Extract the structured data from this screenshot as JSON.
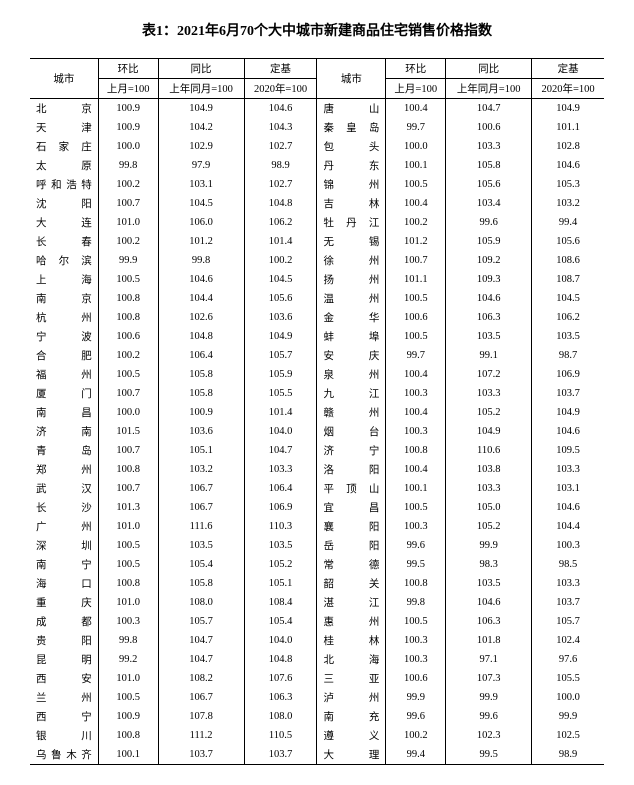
{
  "title": "表1：2021年6月70个大中城市新建商品住宅销售价格指数",
  "headers": {
    "city": "城市",
    "mom": "环比",
    "yoy": "同比",
    "base": "定基",
    "mom_sub": "上月=100",
    "yoy_sub": "上年同月=100",
    "base_sub": "2020年=100"
  },
  "left": [
    {
      "city": "北　　京",
      "mom": "100.9",
      "yoy": "104.9",
      "base": "104.6"
    },
    {
      "city": "天　　津",
      "mom": "100.9",
      "yoy": "104.2",
      "base": "104.3"
    },
    {
      "city": "石 家 庄",
      "mom": "100.0",
      "yoy": "102.9",
      "base": "102.7"
    },
    {
      "city": "太　　原",
      "mom": "99.8",
      "yoy": "97.9",
      "base": "98.9"
    },
    {
      "city": "呼和浩特",
      "mom": "100.2",
      "yoy": "103.1",
      "base": "102.7"
    },
    {
      "city": "沈　　阳",
      "mom": "100.7",
      "yoy": "104.5",
      "base": "104.8"
    },
    {
      "city": "大　　连",
      "mom": "101.0",
      "yoy": "106.0",
      "base": "106.2"
    },
    {
      "city": "长　　春",
      "mom": "100.2",
      "yoy": "101.2",
      "base": "101.4"
    },
    {
      "city": "哈 尔 滨",
      "mom": "99.9",
      "yoy": "99.8",
      "base": "100.2"
    },
    {
      "city": "上　　海",
      "mom": "100.5",
      "yoy": "104.6",
      "base": "104.5"
    },
    {
      "city": "南　　京",
      "mom": "100.8",
      "yoy": "104.4",
      "base": "105.6"
    },
    {
      "city": "杭　　州",
      "mom": "100.8",
      "yoy": "102.6",
      "base": "103.6"
    },
    {
      "city": "宁　　波",
      "mom": "100.6",
      "yoy": "104.8",
      "base": "104.9"
    },
    {
      "city": "合　　肥",
      "mom": "100.2",
      "yoy": "106.4",
      "base": "105.7"
    },
    {
      "city": "福　　州",
      "mom": "100.5",
      "yoy": "105.8",
      "base": "105.9"
    },
    {
      "city": "厦　　门",
      "mom": "100.7",
      "yoy": "105.8",
      "base": "105.5"
    },
    {
      "city": "南　　昌",
      "mom": "100.0",
      "yoy": "100.9",
      "base": "101.4"
    },
    {
      "city": "济　　南",
      "mom": "101.5",
      "yoy": "103.6",
      "base": "104.0"
    },
    {
      "city": "青　　岛",
      "mom": "100.7",
      "yoy": "105.1",
      "base": "104.7"
    },
    {
      "city": "郑　　州",
      "mom": "100.8",
      "yoy": "103.2",
      "base": "103.3"
    },
    {
      "city": "武　　汉",
      "mom": "100.7",
      "yoy": "106.7",
      "base": "106.4"
    },
    {
      "city": "长　　沙",
      "mom": "101.3",
      "yoy": "106.7",
      "base": "106.9"
    },
    {
      "city": "广　　州",
      "mom": "101.0",
      "yoy": "111.6",
      "base": "110.3"
    },
    {
      "city": "深　　圳",
      "mom": "100.5",
      "yoy": "103.5",
      "base": "103.5"
    },
    {
      "city": "南　　宁",
      "mom": "100.5",
      "yoy": "105.4",
      "base": "105.2"
    },
    {
      "city": "海　　口",
      "mom": "100.8",
      "yoy": "105.8",
      "base": "105.1"
    },
    {
      "city": "重　　庆",
      "mom": "101.0",
      "yoy": "108.0",
      "base": "108.4"
    },
    {
      "city": "成　　都",
      "mom": "100.3",
      "yoy": "105.7",
      "base": "105.4"
    },
    {
      "city": "贵　　阳",
      "mom": "99.8",
      "yoy": "104.7",
      "base": "104.0"
    },
    {
      "city": "昆　　明",
      "mom": "99.2",
      "yoy": "104.7",
      "base": "104.8"
    },
    {
      "city": "西　　安",
      "mom": "101.0",
      "yoy": "108.2",
      "base": "107.6"
    },
    {
      "city": "兰　　州",
      "mom": "100.5",
      "yoy": "106.7",
      "base": "106.3"
    },
    {
      "city": "西　　宁",
      "mom": "100.9",
      "yoy": "107.8",
      "base": "108.0"
    },
    {
      "city": "银　　川",
      "mom": "100.8",
      "yoy": "111.2",
      "base": "110.5"
    },
    {
      "city": "乌鲁木齐",
      "mom": "100.1",
      "yoy": "103.7",
      "base": "103.7"
    }
  ],
  "right": [
    {
      "city": "唐　　山",
      "mom": "100.4",
      "yoy": "104.7",
      "base": "104.9"
    },
    {
      "city": "秦 皇 岛",
      "mom": "99.7",
      "yoy": "100.6",
      "base": "101.1"
    },
    {
      "city": "包　　头",
      "mom": "100.0",
      "yoy": "103.3",
      "base": "102.8"
    },
    {
      "city": "丹　　东",
      "mom": "100.1",
      "yoy": "105.8",
      "base": "104.6"
    },
    {
      "city": "锦　　州",
      "mom": "100.5",
      "yoy": "105.6",
      "base": "105.3"
    },
    {
      "city": "吉　　林",
      "mom": "100.4",
      "yoy": "103.4",
      "base": "103.2"
    },
    {
      "city": "牡 丹 江",
      "mom": "100.2",
      "yoy": "99.6",
      "base": "99.4"
    },
    {
      "city": "无　　锡",
      "mom": "101.2",
      "yoy": "105.9",
      "base": "105.6"
    },
    {
      "city": "徐　　州",
      "mom": "100.7",
      "yoy": "109.2",
      "base": "108.6"
    },
    {
      "city": "扬　　州",
      "mom": "101.1",
      "yoy": "109.3",
      "base": "108.7"
    },
    {
      "city": "温　　州",
      "mom": "100.5",
      "yoy": "104.6",
      "base": "104.5"
    },
    {
      "city": "金　　华",
      "mom": "100.6",
      "yoy": "106.3",
      "base": "106.2"
    },
    {
      "city": "蚌　　埠",
      "mom": "100.5",
      "yoy": "103.5",
      "base": "103.5"
    },
    {
      "city": "安　　庆",
      "mom": "99.7",
      "yoy": "99.1",
      "base": "98.7"
    },
    {
      "city": "泉　　州",
      "mom": "100.4",
      "yoy": "107.2",
      "base": "106.9"
    },
    {
      "city": "九　　江",
      "mom": "100.3",
      "yoy": "103.3",
      "base": "103.7"
    },
    {
      "city": "赣　　州",
      "mom": "100.4",
      "yoy": "105.2",
      "base": "104.9"
    },
    {
      "city": "烟　　台",
      "mom": "100.3",
      "yoy": "104.9",
      "base": "104.6"
    },
    {
      "city": "济　　宁",
      "mom": "100.8",
      "yoy": "110.6",
      "base": "109.5"
    },
    {
      "city": "洛　　阳",
      "mom": "100.4",
      "yoy": "103.8",
      "base": "103.3"
    },
    {
      "city": "平 顶 山",
      "mom": "100.1",
      "yoy": "103.3",
      "base": "103.1"
    },
    {
      "city": "宜　　昌",
      "mom": "100.5",
      "yoy": "105.0",
      "base": "104.6"
    },
    {
      "city": "襄　　阳",
      "mom": "100.3",
      "yoy": "105.2",
      "base": "104.4"
    },
    {
      "city": "岳　　阳",
      "mom": "99.6",
      "yoy": "99.9",
      "base": "100.3"
    },
    {
      "city": "常　　德",
      "mom": "99.5",
      "yoy": "98.3",
      "base": "98.5"
    },
    {
      "city": "韶　　关",
      "mom": "100.8",
      "yoy": "103.5",
      "base": "103.3"
    },
    {
      "city": "湛　　江",
      "mom": "99.8",
      "yoy": "104.6",
      "base": "103.7"
    },
    {
      "city": "惠　　州",
      "mom": "100.5",
      "yoy": "106.3",
      "base": "105.7"
    },
    {
      "city": "桂　　林",
      "mom": "100.3",
      "yoy": "101.8",
      "base": "102.4"
    },
    {
      "city": "北　　海",
      "mom": "100.3",
      "yoy": "97.1",
      "base": "97.6"
    },
    {
      "city": "三　　亚",
      "mom": "100.6",
      "yoy": "107.3",
      "base": "105.5"
    },
    {
      "city": "泸　　州",
      "mom": "99.9",
      "yoy": "99.9",
      "base": "100.0"
    },
    {
      "city": "南　　充",
      "mom": "99.6",
      "yoy": "99.6",
      "base": "99.9"
    },
    {
      "city": "遵　　义",
      "mom": "100.2",
      "yoy": "102.3",
      "base": "102.5"
    },
    {
      "city": "大　　理",
      "mom": "99.4",
      "yoy": "99.5",
      "base": "98.9"
    }
  ]
}
